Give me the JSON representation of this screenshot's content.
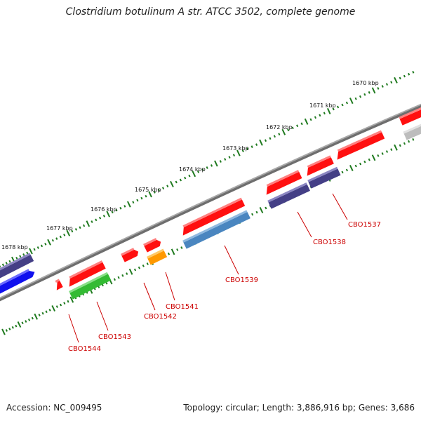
{
  "title": "Clostridium botulinum A str. ATCC 3502, complete genome",
  "accession": "Accession: NC_009495",
  "topology": "Topology: circular; Length: 3,886,916 bp; Genes: 3,686",
  "colors": {
    "backbone": "#8a8a8a",
    "tick": "#1f7a1f",
    "label": "#cc0000",
    "red": "#ff1010",
    "purple": "#443f86",
    "blue": "#1010ee",
    "green": "#33bb33",
    "steel": "#4a86c0",
    "orange": "#ff9900",
    "gray": "#bdbdbd"
  },
  "scale_labels": [
    "1670 kbp",
    "1671 kbp",
    "1672 kbp",
    "1673 kbp",
    "1674 kbp",
    "1675 kbp",
    "1676 kbp",
    "1677 kbp",
    "1678 kbp"
  ],
  "gene_labels": [
    "CBO1537",
    "CBO1538",
    "CBO1539",
    "CBO1541",
    "CBO1542",
    "CBO1543",
    "CBO1544"
  ]
}
